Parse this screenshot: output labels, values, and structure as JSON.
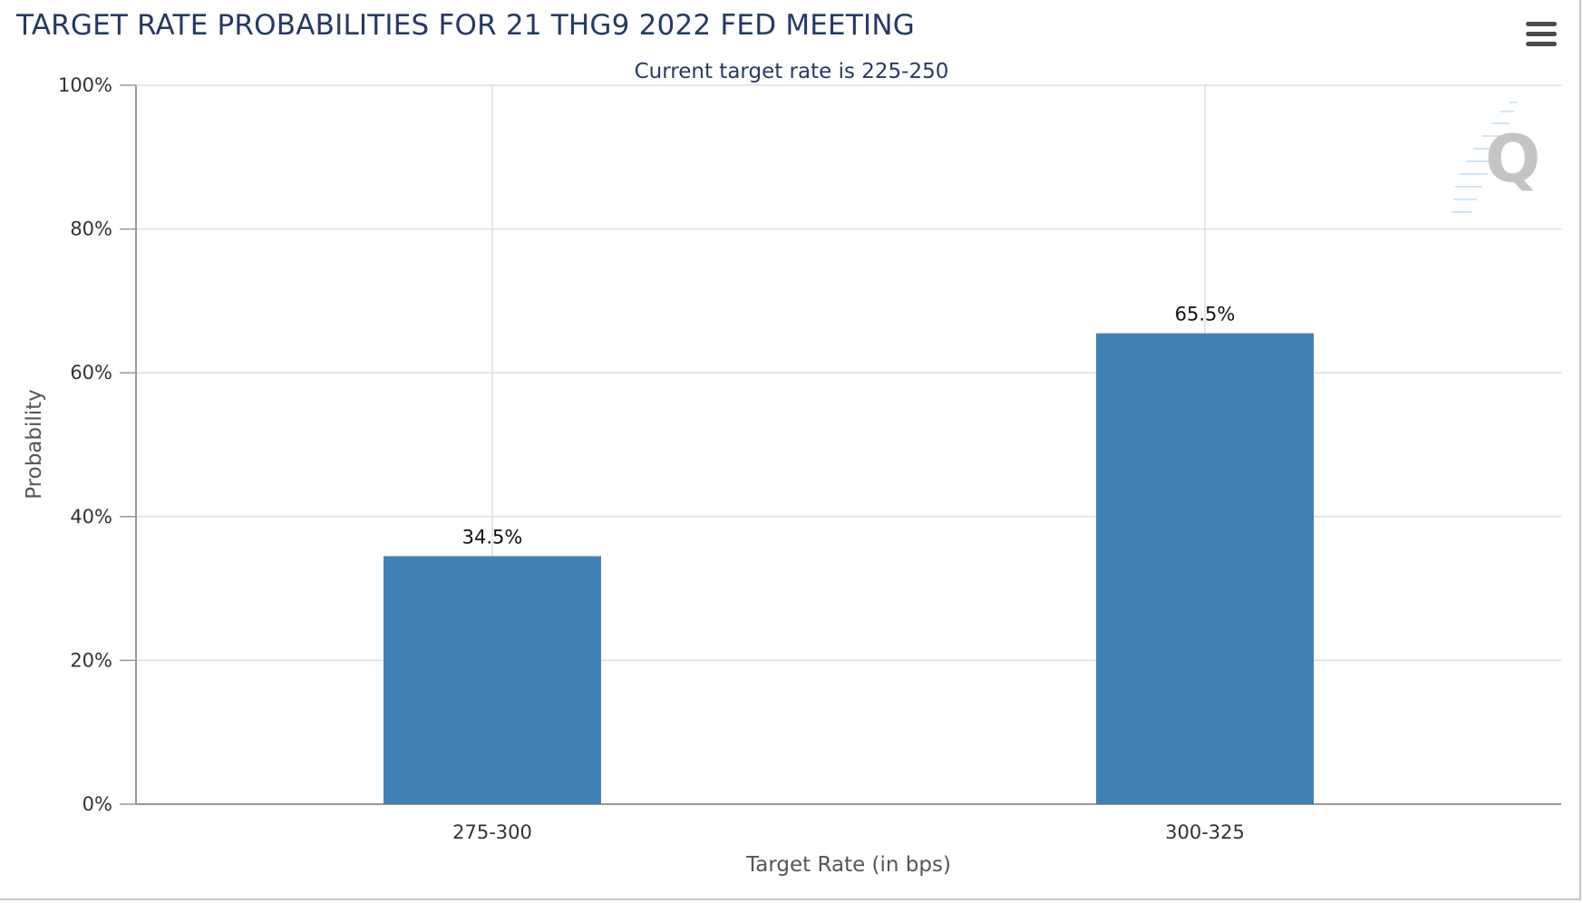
{
  "header": {
    "title": "TARGET RATE PROBABILITIES FOR 21 THG9 2022 FED MEETING"
  },
  "chart_data": {
    "type": "bar",
    "title": "TARGET RATE PROBABILITIES FOR 21 THG9 2022 FED MEETING",
    "subtitle": "Current target rate is 225-250",
    "xlabel": "Target Rate (in bps)",
    "ylabel": "Probability",
    "categories": [
      "275-300",
      "300-325"
    ],
    "values": [
      34.5,
      65.5
    ],
    "data_labels": [
      "34.5%",
      "65.5%"
    ],
    "ylim": [
      0,
      100
    ],
    "yticks": [
      0,
      20,
      40,
      60,
      80,
      100
    ],
    "ytick_labels": [
      "0%",
      "20%",
      "40%",
      "60%",
      "80%",
      "100%"
    ],
    "grid": true,
    "legend": "none",
    "bar_color": "#4281b5"
  },
  "colors": {
    "title": "#253a63",
    "bar": "#4281b5",
    "grid": "#dedede",
    "axis": "#999999"
  }
}
